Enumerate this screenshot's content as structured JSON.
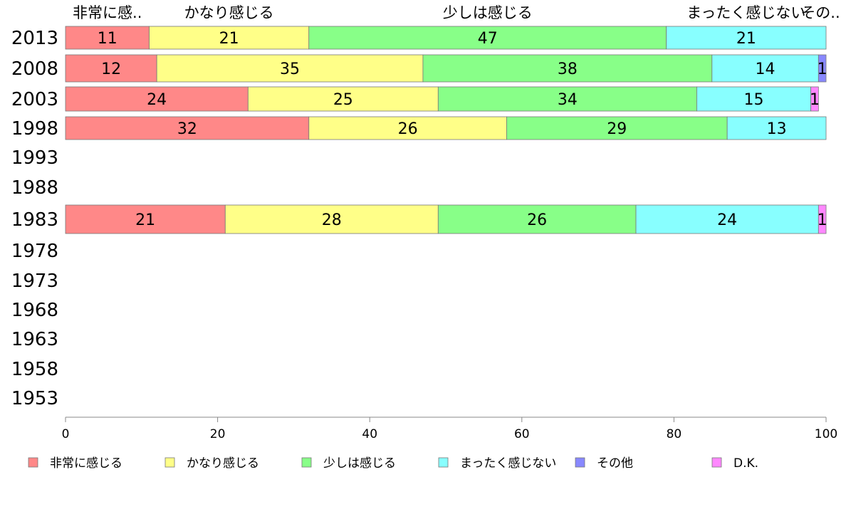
{
  "chart_data": {
    "type": "bar",
    "orientation": "horizontal",
    "stacked": true,
    "title": "",
    "xlabel": "",
    "ylabel": "",
    "xlim": [
      0,
      100
    ],
    "xticks": [
      0,
      20,
      40,
      60,
      80,
      100
    ],
    "categories": [
      "2013",
      "2008",
      "2003",
      "1998",
      "1993",
      "1988",
      "1983",
      "1978",
      "1973",
      "1968",
      "1963",
      "1958",
      "1953"
    ],
    "top_labels": [
      "非常に感..",
      "かなり感じる",
      "少しは感じる",
      "まったく感じない",
      "その.."
    ],
    "series": [
      {
        "name": "非常に感じる",
        "color": "#ff8888",
        "values": [
          11,
          12,
          24,
          32,
          null,
          null,
          21,
          null,
          null,
          null,
          null,
          null,
          null
        ]
      },
      {
        "name": "かなり感じる",
        "color": "#ffff88",
        "values": [
          21,
          35,
          25,
          26,
          null,
          null,
          28,
          null,
          null,
          null,
          null,
          null,
          null
        ]
      },
      {
        "name": "少しは感じる",
        "color": "#88ff88",
        "values": [
          47,
          38,
          34,
          29,
          null,
          null,
          26,
          null,
          null,
          null,
          null,
          null,
          null
        ]
      },
      {
        "name": "まったく感じない",
        "color": "#88ffff",
        "values": [
          21,
          14,
          15,
          13,
          null,
          null,
          24,
          null,
          null,
          null,
          null,
          null,
          null
        ]
      },
      {
        "name": "その他",
        "color": "#8888ff",
        "values": [
          0,
          1,
          0,
          0,
          null,
          null,
          0,
          null,
          null,
          null,
          null,
          null,
          null
        ]
      },
      {
        "name": "D.K.",
        "color": "#ff88ff",
        "values": [
          0,
          0,
          1,
          0,
          null,
          null,
          1,
          null,
          null,
          null,
          null,
          null,
          null
        ]
      }
    ],
    "legend_position": "bottom",
    "grid": false
  }
}
